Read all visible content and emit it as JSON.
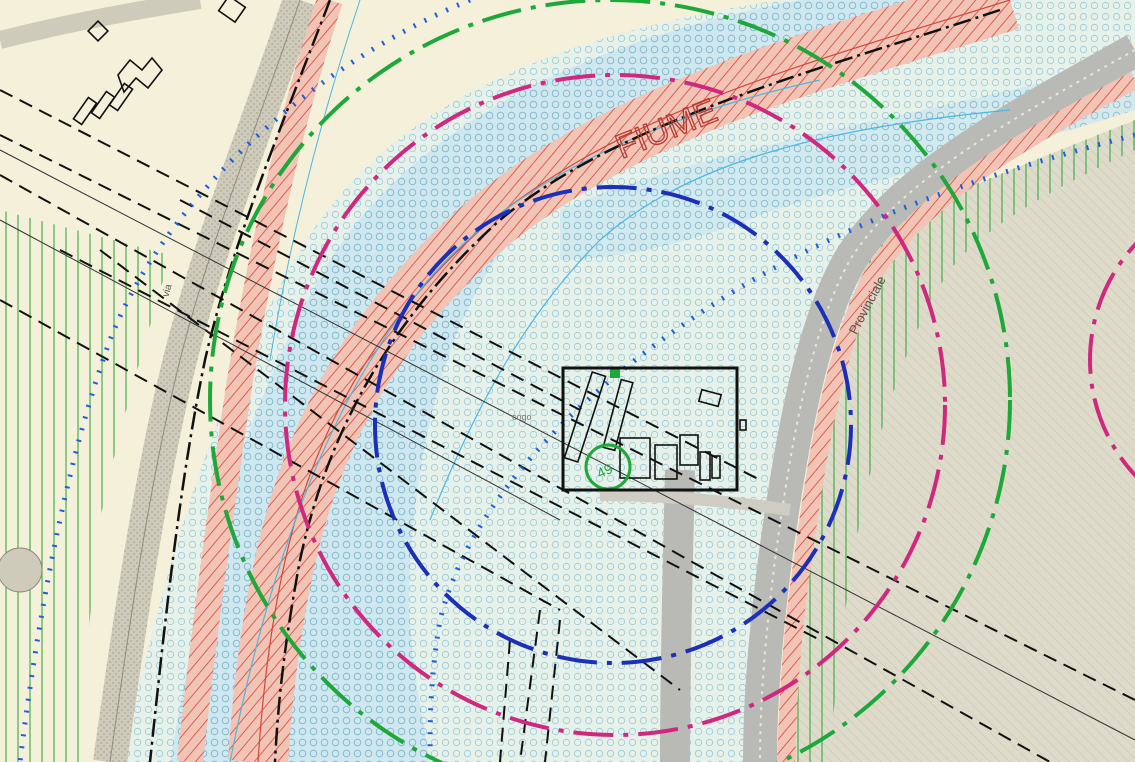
{
  "map": {
    "labels": {
      "river_name": "FIUME",
      "road_name": "Provinciale",
      "side_road": "via",
      "small_label": "cogo",
      "well_number": "49"
    },
    "colors": {
      "background": "#f4f0da",
      "river_band_fill": "#c7e3ec",
      "river_hatch": "#d2473c",
      "zone_green": "#2eaa3a",
      "ring_outer": "#1fa83a",
      "ring_middle": "#d0287e",
      "ring_inner": "#1b2fb8",
      "triangle_line": "#1f5fd8",
      "road_gray": "#b9b9b5",
      "highlight_box": "#111111"
    }
  }
}
